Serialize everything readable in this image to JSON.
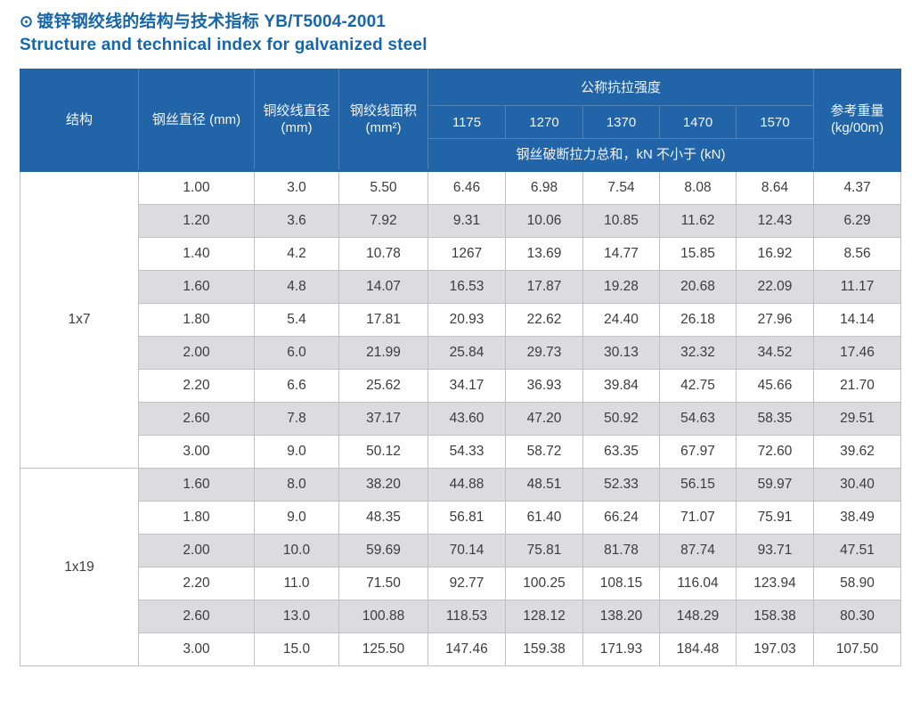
{
  "title": {
    "bullet": "⊙",
    "zh": "镀锌钢绞线的结构与技术指标 YB/T5004-2001",
    "en": "Structure and technical index for galvanized steel"
  },
  "colors": {
    "header_bg": "#2164a7",
    "header_divider": "#4d83ba",
    "title_text": "#1766a9",
    "stripe_bg": "#dcdcdf",
    "body_text": "#3c3c3c",
    "border_gray": "#c1c1c5"
  },
  "table": {
    "headers": {
      "structure": "结构",
      "wire_diameter": "钢丝直径 (mm)",
      "strand_diameter_line1": "铜绞线直径",
      "strand_diameter_line2": "(mm)",
      "strand_area_line1": "钢绞线面积",
      "strand_area_line2": "(mm²)",
      "tensile_group": "公称抗拉强度",
      "tensile_grades": [
        "1175",
        "1270",
        "1370",
        "1470",
        "1570"
      ],
      "breaking_note": "钢丝破断拉力总和，kN 不小于 (kN)",
      "ref_weight_line1": "参考重量",
      "ref_weight_line2": "(kg/00m)"
    },
    "groups": [
      {
        "structure": "1x7",
        "rows": [
          [
            "1.00",
            "3.0",
            "5.50",
            "6.46",
            "6.98",
            "7.54",
            "8.08",
            "8.64",
            "4.37"
          ],
          [
            "1.20",
            "3.6",
            "7.92",
            "9.31",
            "10.06",
            "10.85",
            "11.62",
            "12.43",
            "6.29"
          ],
          [
            "1.40",
            "4.2",
            "10.78",
            "1267",
            "13.69",
            "14.77",
            "15.85",
            "16.92",
            "8.56"
          ],
          [
            "1.60",
            "4.8",
            "14.07",
            "16.53",
            "17.87",
            "19.28",
            "20.68",
            "22.09",
            "11.17"
          ],
          [
            "1.80",
            "5.4",
            "17.81",
            "20.93",
            "22.62",
            "24.40",
            "26.18",
            "27.96",
            "14.14"
          ],
          [
            "2.00",
            "6.0",
            "21.99",
            "25.84",
            "29.73",
            "30.13",
            "32.32",
            "34.52",
            "17.46"
          ],
          [
            "2.20",
            "6.6",
            "25.62",
            "34.17",
            "36.93",
            "39.84",
            "42.75",
            "45.66",
            "21.70"
          ],
          [
            "2.60",
            "7.8",
            "37.17",
            "43.60",
            "47.20",
            "50.92",
            "54.63",
            "58.35",
            "29.51"
          ],
          [
            "3.00",
            "9.0",
            "50.12",
            "54.33",
            "58.72",
            "63.35",
            "67.97",
            "72.60",
            "39.62"
          ]
        ]
      },
      {
        "structure": "1x19",
        "rows": [
          [
            "1.60",
            "8.0",
            "38.20",
            "44.88",
            "48.51",
            "52.33",
            "56.15",
            "59.97",
            "30.40"
          ],
          [
            "1.80",
            "9.0",
            "48.35",
            "56.81",
            "61.40",
            "66.24",
            "71.07",
            "75.91",
            "38.49"
          ],
          [
            "2.00",
            "10.0",
            "59.69",
            "70.14",
            "75.81",
            "81.78",
            "87.74",
            "93.71",
            "47.51"
          ],
          [
            "2.20",
            "11.0",
            "71.50",
            "92.77",
            "100.25",
            "108.15",
            "116.04",
            "123.94",
            "58.90"
          ],
          [
            "2.60",
            "13.0",
            "100.88",
            "118.53",
            "128.12",
            "138.20",
            "148.29",
            "158.38",
            "80.30"
          ],
          [
            "3.00",
            "15.0",
            "125.50",
            "147.46",
            "159.38",
            "171.93",
            "184.48",
            "197.03",
            "107.50"
          ]
        ]
      }
    ]
  }
}
